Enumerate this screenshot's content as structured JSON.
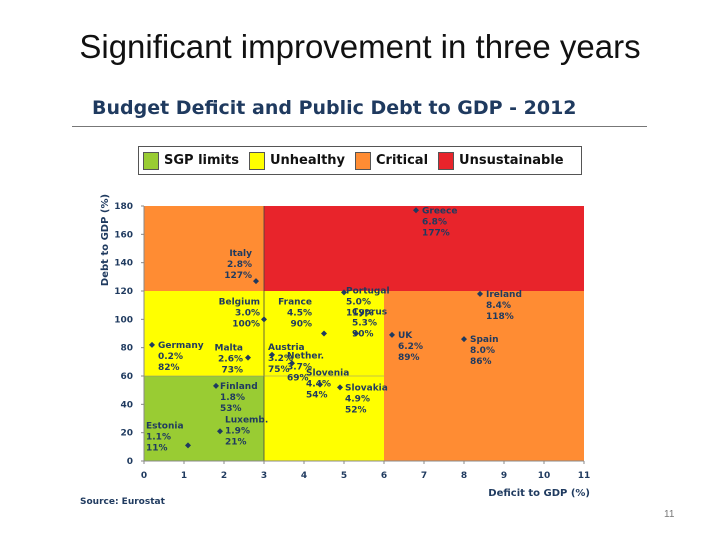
{
  "slide": {
    "title": "Significant improvement in three years",
    "source": "Source: Eurostat",
    "page_number": "11"
  },
  "chart_data": {
    "type": "scatter",
    "title": "Budget Deficit and Public Debt to GDP - 2012",
    "xlabel": "Deficit to GDP (%)",
    "ylabel": "Debt to GDP (%)",
    "xlim": [
      0,
      11
    ],
    "ylim": [
      0,
      180
    ],
    "x_ticks": [
      "0",
      "1",
      "2",
      "3",
      "4",
      "5",
      "6",
      "7",
      "8",
      "9",
      "10",
      "11"
    ],
    "y_ticks": [
      "0",
      "20",
      "40",
      "60",
      "80",
      "100",
      "120",
      "140",
      "160",
      "180"
    ],
    "legend": [
      {
        "label": "SGP limits",
        "color": "#99cc33"
      },
      {
        "label": "Unhealthy",
        "color": "#ffff00"
      },
      {
        "label": "Critical",
        "color": "#ff8c33"
      },
      {
        "label": "Unsustainable",
        "color": "#e8242b"
      }
    ],
    "zones": [
      {
        "name": "Critical",
        "x0": 0,
        "x1": 11,
        "y0": 0,
        "y1": 180,
        "color": "#ff8c33"
      },
      {
        "name": "Unsustainable",
        "x0": 3,
        "x1": 11,
        "y0": 120,
        "y1": 180,
        "color": "#e8242b"
      },
      {
        "name": "Unhealthy",
        "x0": 0,
        "x1": 6,
        "y0": 0,
        "y1": 120,
        "color": "#ffff00"
      },
      {
        "name": "SGP limits",
        "x0": 0,
        "x1": 3,
        "y0": 0,
        "y1": 60,
        "color": "#99cc33"
      }
    ],
    "points": [
      {
        "lines": [
          "Greece",
          "6.8%",
          "177%"
        ],
        "x": 6.8,
        "y": 177
      },
      {
        "lines": [
          "Italy",
          "2.8%",
          "127%"
        ],
        "x": 2.8,
        "y": 127
      },
      {
        "lines": [
          "Portugal",
          "5.0%",
          "119%"
        ],
        "x": 5.0,
        "y": 119
      },
      {
        "lines": [
          "Ireland",
          "8.4%",
          "118%"
        ],
        "x": 8.4,
        "y": 118
      },
      {
        "lines": [
          "Belgium",
          "3.0%",
          "100%"
        ],
        "x": 3.0,
        "y": 100
      },
      {
        "lines": [
          "France",
          "4.5%",
          "90%"
        ],
        "x": 4.5,
        "y": 90
      },
      {
        "lines": [
          "Austria",
          "3.2%",
          "75%"
        ],
        "x": 3.2,
        "y": 75
      },
      {
        "lines": [
          "Germany",
          "0.2%",
          "82%"
        ],
        "x": 0.2,
        "y": 82
      },
      {
        "lines": [
          "Malta",
          "2.6%",
          "73%"
        ],
        "x": 2.6,
        "y": 73
      },
      {
        "lines": [
          "Nether.",
          "3.7%",
          "69%"
        ],
        "x": 3.7,
        "y": 69
      },
      {
        "lines": [
          "Cyprus",
          "5.3%",
          "90%"
        ],
        "x": 5.3,
        "y": 90
      },
      {
        "lines": [
          "UK",
          "6.2%",
          "89%"
        ],
        "x": 6.2,
        "y": 89
      },
      {
        "lines": [
          "Spain",
          "8.0%",
          "86%"
        ],
        "x": 8.0,
        "y": 86
      },
      {
        "lines": [
          "Finland",
          "1.8%",
          "53%"
        ],
        "x": 1.8,
        "y": 53
      },
      {
        "lines": [
          "Slovenia",
          "4.4%",
          "54%"
        ],
        "x": 4.4,
        "y": 54
      },
      {
        "lines": [
          "Slovakia",
          "4.9%",
          "52%"
        ],
        "x": 4.9,
        "y": 52
      },
      {
        "lines": [
          "Estonia",
          "1.1%",
          "11%"
        ],
        "x": 1.1,
        "y": 11
      },
      {
        "lines": [
          "Luxemb.",
          "1.9%",
          "21%"
        ],
        "x": 1.9,
        "y": 21
      }
    ]
  }
}
